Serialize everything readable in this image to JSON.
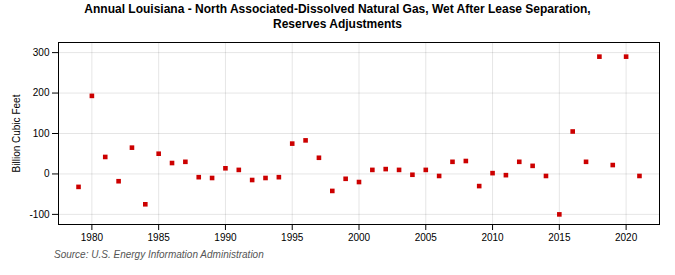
{
  "chart_data": {
    "type": "scatter",
    "title": "Annual Louisiana - North Associated-Dissolved Natural Gas, Wet After Lease Separation,\nReserves Adjustments",
    "ylabel": "Billion Cubic Feet",
    "source": "Source: U.S. Energy Information Administration",
    "x": [
      1979,
      1980,
      1981,
      1982,
      1983,
      1984,
      1985,
      1986,
      1987,
      1988,
      1989,
      1990,
      1991,
      1992,
      1993,
      1994,
      1995,
      1996,
      1997,
      1998,
      1999,
      2000,
      2001,
      2002,
      2003,
      2004,
      2005,
      2006,
      2007,
      2008,
      2009,
      2010,
      2011,
      2012,
      2013,
      2014,
      2015,
      2016,
      2017,
      2018,
      2019,
      2020,
      2021
    ],
    "values": [
      -32,
      193,
      42,
      -18,
      65,
      -75,
      50,
      27,
      30,
      -8,
      -10,
      14,
      10,
      -15,
      -10,
      -8,
      75,
      83,
      40,
      -42,
      -12,
      -20,
      10,
      12,
      10,
      -2,
      10,
      -5,
      30,
      32,
      -30,
      2,
      -3,
      30,
      20,
      -5,
      -100,
      105,
      30,
      290,
      22,
      290,
      -5
    ],
    "color": "#cc0000",
    "marker": "square",
    "xlim": [
      1977.5,
      2022.5
    ],
    "xticks": [
      1980,
      1985,
      1990,
      1995,
      2000,
      2005,
      2010,
      2015,
      2020
    ],
    "ylim": [
      -125,
      325
    ],
    "yticks": [
      -100,
      0,
      100,
      200,
      300
    ],
    "grid": true
  }
}
